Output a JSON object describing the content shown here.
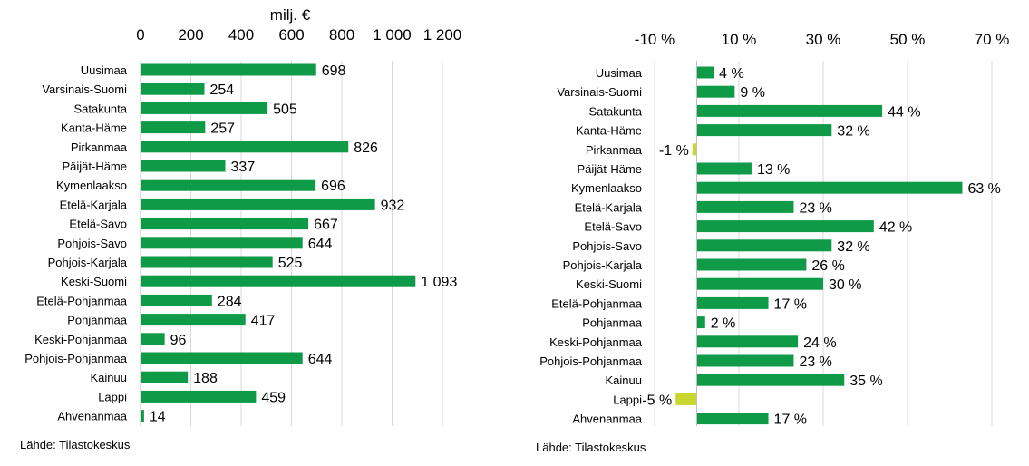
{
  "chart_data": [
    {
      "type": "bar",
      "orientation": "horizontal",
      "unit_label": "milj. €",
      "source": "Lähde: Tilastokeskus",
      "xlim": [
        0,
        1200
      ],
      "ticks": [
        "0",
        "200",
        "400",
        "600",
        "800",
        "1 000",
        "1 200"
      ],
      "tick_values": [
        0,
        200,
        400,
        600,
        800,
        1000,
        1200
      ],
      "grid": true,
      "bar_color": "#0f9a48",
      "categories": [
        "Uusimaa",
        "Varsinais-Suomi",
        "Satakunta",
        "Kanta-Häme",
        "Pirkanmaa",
        "Päijät-Häme",
        "Kymenlaakso",
        "Etelä-Karjala",
        "Etelä-Savo",
        "Pohjois-Savo",
        "Pohjois-Karjala",
        "Keski-Suomi",
        "Etelä-Pohjanmaa",
        "Pohjanmaa",
        "Keski-Pohjanmaa",
        "Pohjois-Pohjanmaa",
        "Kainuu",
        "Lappi",
        "Ahvenanmaa"
      ],
      "values": [
        698,
        254,
        505,
        257,
        826,
        337,
        696,
        932,
        667,
        644,
        525,
        1093,
        284,
        417,
        96,
        644,
        188,
        459,
        14
      ],
      "value_labels": [
        "698",
        "254",
        "505",
        "257",
        "826",
        "337",
        "696",
        "932",
        "667",
        "644",
        "525",
        "1 093",
        "284",
        "417",
        "96",
        "644",
        "188",
        "459",
        "14"
      ]
    },
    {
      "type": "bar",
      "orientation": "horizontal",
      "source": "Lähde: Tilastokeskus",
      "xlim": [
        -10,
        70
      ],
      "ticks": [
        "-10 %",
        "10 %",
        "30 %",
        "50 %",
        "70 %"
      ],
      "tick_values": [
        -10,
        10,
        30,
        50,
        70
      ],
      "grid": true,
      "bar_color": "#0f9a48",
      "negative_bar_color": "#c8d630",
      "categories": [
        "Uusimaa",
        "Varsinais-Suomi",
        "Satakunta",
        "Kanta-Häme",
        "Pirkanmaa",
        "Päijät-Häme",
        "Kymenlaakso",
        "Etelä-Karjala",
        "Etelä-Savo",
        "Pohjois-Savo",
        "Pohjois-Karjala",
        "Keski-Suomi",
        "Etelä-Pohjanmaa",
        "Pohjanmaa",
        "Keski-Pohjanmaa",
        "Pohjois-Pohjanmaa",
        "Kainuu",
        "Lappi",
        "Ahvenanmaa"
      ],
      "values": [
        4,
        9,
        44,
        32,
        -1,
        13,
        63,
        23,
        42,
        32,
        26,
        30,
        17,
        2,
        24,
        23,
        35,
        -5,
        17
      ],
      "value_labels": [
        "4 %",
        "9 %",
        "44 %",
        "32 %",
        "-1 %",
        "13 %",
        "63 %",
        "23 %",
        "42 %",
        "32 %",
        "26 %",
        "30 %",
        "17 %",
        "2 %",
        "24 %",
        "23 %",
        "35 %",
        "-5 %",
        "17 %"
      ]
    }
  ]
}
